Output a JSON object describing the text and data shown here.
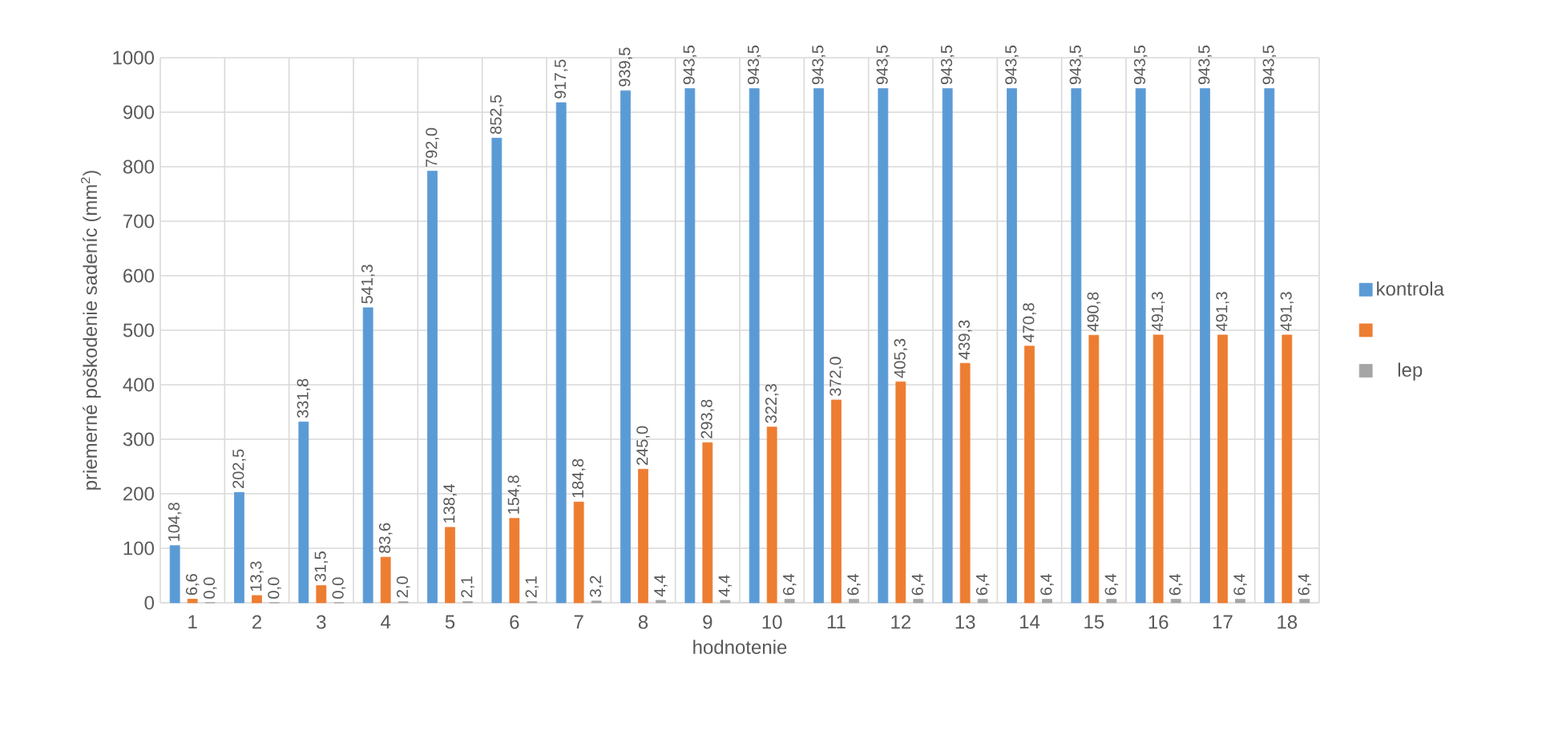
{
  "chart_data": {
    "type": "bar",
    "xlabel": "hodnotenie",
    "ylabel": "priemerné poškodenie sadeníc (mm$^{2}$)",
    "categories": [
      "1",
      "2",
      "3",
      "4",
      "5",
      "6",
      "7",
      "8",
      "9",
      "10",
      "11",
      "12",
      "13",
      "14",
      "15",
      "16",
      "17",
      "18"
    ],
    "series": [
      {
        "name": "kontrola",
        "color": "#5b9bd5",
        "values": [
          104.8,
          202.5,
          331.8,
          541.3,
          792.0,
          852.5,
          917.5,
          939.5,
          943.5,
          943.5,
          943.5,
          943.5,
          943.5,
          943.5,
          943.5,
          943.5,
          943.5,
          943.5
        ],
        "value_labels": [
          "104,8",
          "202,5",
          "331,8",
          "541,3",
          "792,0",
          "852,5",
          "917,5",
          "939,5",
          "943,5",
          "943,5",
          "943,5",
          "943,5",
          "943,5",
          "943,5",
          "943,5",
          "943,5",
          "943,5",
          "943,5"
        ]
      },
      {
        "color": "#ed7d31",
        "values": [
          6.6,
          13.3,
          31.5,
          83.6,
          138.4,
          154.8,
          184.8,
          245.0,
          293.8,
          322.3,
          372.0,
          405.3,
          439.3,
          470.8,
          490.8,
          491.3,
          491.3,
          491.3
        ],
        "value_labels": [
          "6,6",
          "13,3",
          "31,5",
          "83,6",
          "138,4",
          "154,8",
          "184,8",
          "245,0",
          "293,8",
          "322,3",
          "372,0",
          "405,3",
          "439,3",
          "470,8",
          "490,8",
          "491,3",
          "491,3",
          "491,3"
        ]
      },
      {
        "name": "lep",
        "color": "#a5a5a5",
        "values": [
          0.0,
          0.0,
          0.0,
          2.0,
          2.1,
          2.1,
          3.2,
          4.4,
          4.4,
          6.4,
          6.4,
          6.4,
          6.4,
          6.4,
          6.4,
          6.4,
          6.4,
          6.4
        ],
        "value_labels": [
          "0,0",
          "0,0",
          "0,0",
          "2,0",
          "2,1",
          "2,1",
          "3,2",
          "4,4",
          "4,4",
          "6,4",
          "6,4",
          "6,4",
          "6,4",
          "6,4",
          "6,4",
          "6,4",
          "6,4",
          "6,4"
        ]
      }
    ],
    "ylim": [
      0,
      1000
    ],
    "yticks": [
      0,
      100,
      200,
      300,
      400,
      500,
      600,
      700,
      800,
      900,
      1000
    ],
    "grid": true,
    "legend": "right"
  }
}
